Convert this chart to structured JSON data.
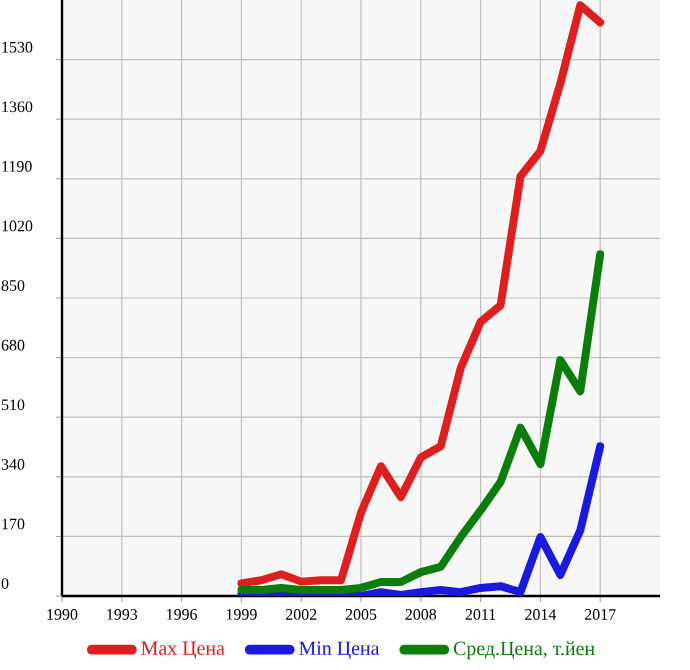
{
  "chart_data": {
    "type": "line",
    "x": [
      1999,
      2000,
      2001,
      2002,
      2003,
      2004,
      2005,
      2006,
      2007,
      2008,
      2009,
      2010,
      2011,
      2012,
      2013,
      2014,
      2015,
      2016,
      2017
    ],
    "series": [
      {
        "name": "Max Цена",
        "color": "#dd1f1f",
        "values": [
          36,
          45,
          62,
          41,
          45,
          45,
          238,
          370,
          282,
          395,
          427,
          650,
          782,
          829,
          1197,
          1269,
          1462,
          1685,
          1636
        ]
      },
      {
        "name": "Min Цена",
        "color": "#1a1adf",
        "values": [
          5,
          5,
          5,
          5,
          5,
          3,
          0,
          11,
          3,
          11,
          17,
          11,
          23,
          28,
          11,
          168,
          60,
          187,
          427
        ]
      },
      {
        "name": "Сред.Цена, т.йен",
        "color": "#0a7d0a",
        "values": [
          17,
          17,
          23,
          17,
          17,
          17,
          23,
          40,
          40,
          68,
          83,
          168,
          244,
          325,
          480,
          376,
          673,
          584,
          975
        ]
      }
    ],
    "xlim": [
      1990,
      2020
    ],
    "xticks": [
      1990,
      1993,
      1996,
      1999,
      2002,
      2005,
      2008,
      2011,
      2014,
      2017
    ],
    "ylim": [
      0,
      1700
    ],
    "yticks": [
      0,
      170,
      340,
      510,
      680,
      850,
      1020,
      1190,
      1360,
      1530
    ],
    "grid": true,
    "legend": "bottom",
    "marker": "none",
    "line_style": "solid"
  }
}
